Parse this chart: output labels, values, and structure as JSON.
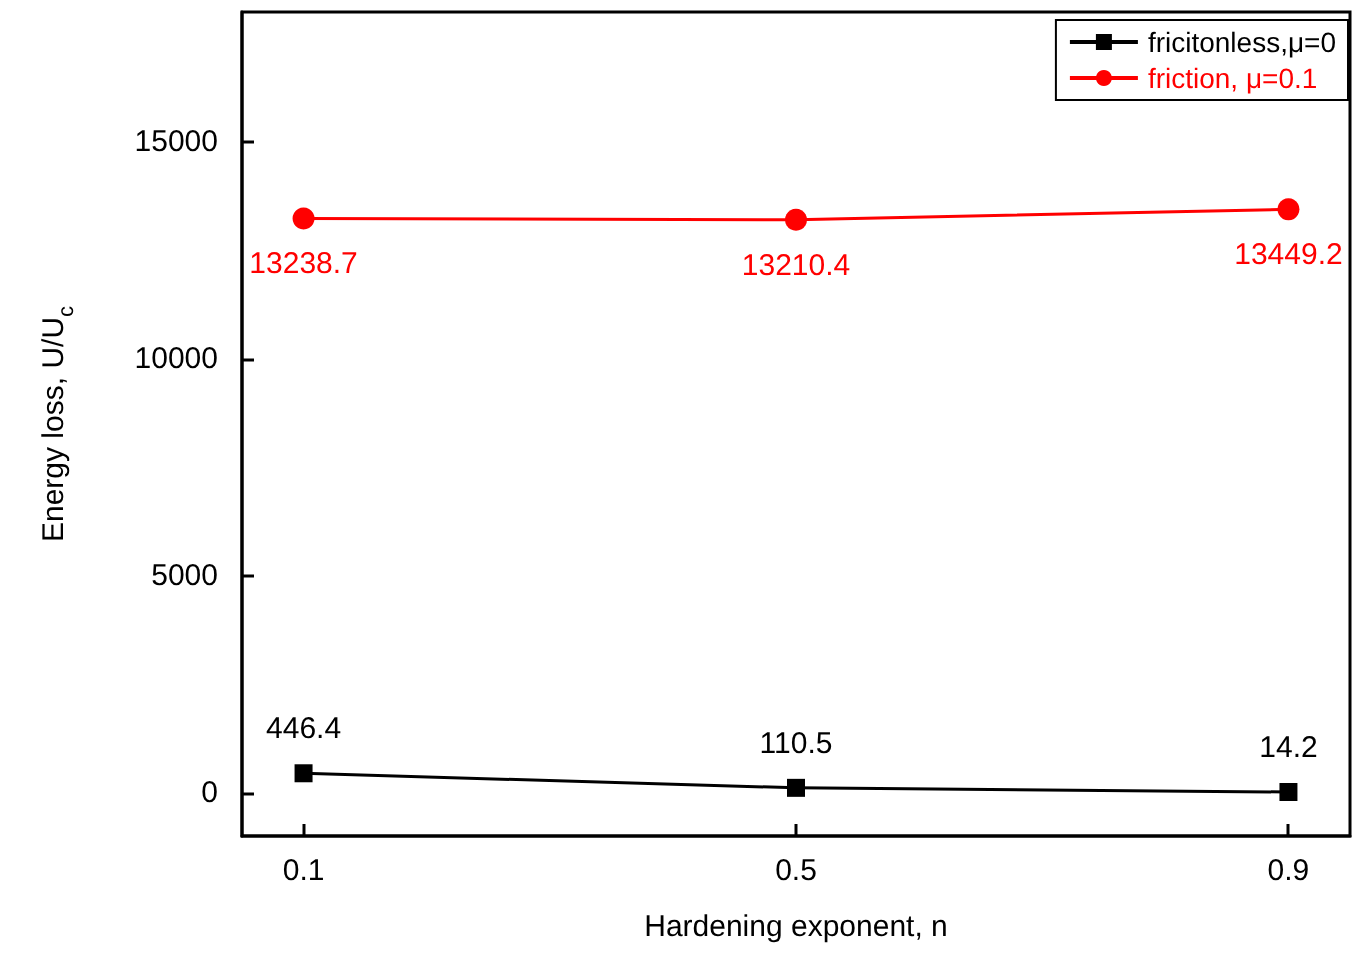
{
  "chart_data": {
    "type": "line",
    "xlabel": "Hardening exponent, n",
    "ylabel": "Energy loss, U/U$_{c}$",
    "x": [
      0.1,
      0.5,
      0.9
    ],
    "series": [
      {
        "name": "fricitonless,μ=0",
        "color": "#000000",
        "marker": "square",
        "values": [
          446.4,
          110.5,
          14.2
        ]
      },
      {
        "name": "friction, μ=0.1",
        "color": "#ff0000",
        "marker": "circle",
        "values": [
          13238.7,
          13210.4,
          13449.2
        ]
      }
    ],
    "xlim": [
      0.05,
      0.95
    ],
    "xticks": [
      0.1,
      0.5,
      0.9
    ],
    "ylim": [
      -1000,
      18000
    ],
    "yticks": [
      0,
      5000,
      10000,
      15000
    ],
    "data_labels": true,
    "grid": false,
    "legend": "top right",
    "line_style": "solid"
  }
}
